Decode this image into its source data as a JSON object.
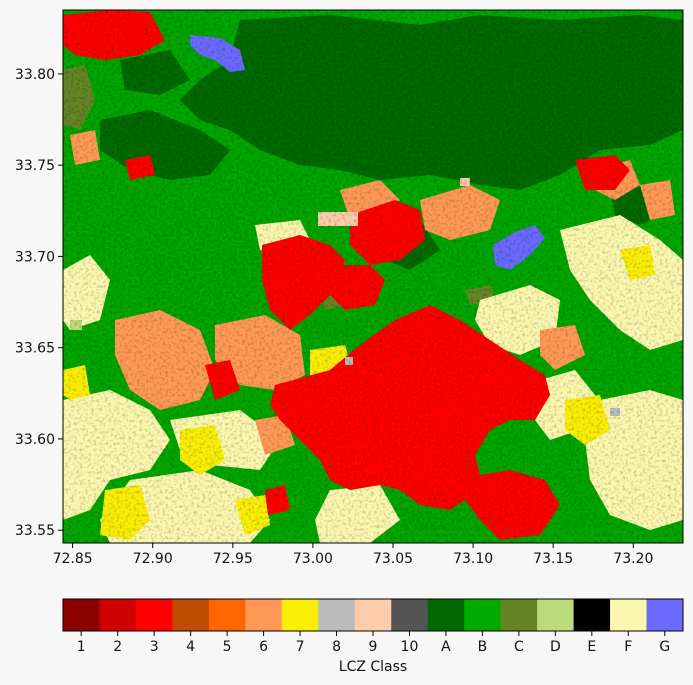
{
  "map": {
    "type": "raster",
    "x_ticks": [
      "72.85",
      "72.90",
      "72.95",
      "73.00",
      "73.05",
      "73.10",
      "73.15",
      "73.20"
    ],
    "y_ticks": [
      "33.80",
      "33.75",
      "33.70",
      "33.65",
      "33.60",
      "33.55"
    ],
    "x_tick_values": [
      72.85,
      72.9,
      72.95,
      73.0,
      73.05,
      73.1,
      73.15,
      73.2
    ],
    "y_tick_values": [
      33.8,
      33.75,
      33.7,
      33.65,
      33.6,
      33.55
    ],
    "xlim": [
      72.844,
      73.231
    ],
    "ylim": [
      33.543,
      33.835
    ],
    "background_color": "#00a500"
  },
  "colorbar": {
    "label": "LCZ Class",
    "classes": [
      {
        "label": "1",
        "color": "#8c0000"
      },
      {
        "label": "2",
        "color": "#d10000"
      },
      {
        "label": "3",
        "color": "#ff0000"
      },
      {
        "label": "4",
        "color": "#bf4d00"
      },
      {
        "label": "5",
        "color": "#ff6600"
      },
      {
        "label": "6",
        "color": "#ff9955"
      },
      {
        "label": "7",
        "color": "#faee05"
      },
      {
        "label": "8",
        "color": "#bcbcbc"
      },
      {
        "label": "9",
        "color": "#ffccaa"
      },
      {
        "label": "10",
        "color": "#555555"
      },
      {
        "label": "A",
        "color": "#006a00"
      },
      {
        "label": "B",
        "color": "#00aa00"
      },
      {
        "label": "C",
        "color": "#648525"
      },
      {
        "label": "D",
        "color": "#b9db79"
      },
      {
        "label": "E",
        "color": "#000000"
      },
      {
        "label": "F",
        "color": "#fbf7ae"
      },
      {
        "label": "G",
        "color": "#6a6aff"
      }
    ]
  }
}
